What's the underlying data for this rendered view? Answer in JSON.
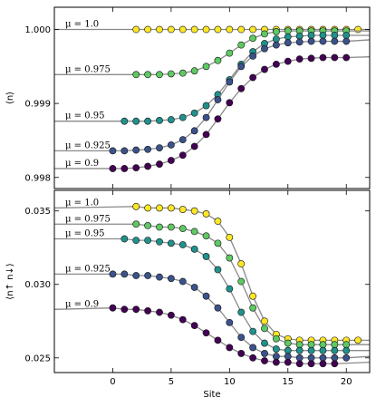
{
  "chart_data": [
    {
      "type": "line",
      "panel": "top",
      "ylabel": "⟨n⟩",
      "xlim": [
        -5,
        22
      ],
      "ylim": [
        0.99785,
        1.0003
      ],
      "yticks": [
        0.998,
        0.999,
        1.0
      ],
      "ytick_labels": [
        "0.998",
        "0.999",
        "1.000"
      ],
      "xticks": [
        0,
        5,
        10,
        15,
        20
      ],
      "grid": false,
      "series": [
        {
          "name": "μ = 1.0",
          "color": "#fde725",
          "x": [
            2,
            3,
            4,
            5,
            6,
            7,
            8,
            9,
            10,
            11,
            12,
            13,
            14,
            15,
            16,
            17,
            18,
            19,
            20,
            21
          ],
          "values": [
            1.0,
            1.0,
            1.0,
            1.0,
            1.0,
            1.0,
            1.0,
            1.0,
            1.0,
            1.0,
            1.0,
            1.0,
            1.0,
            1.0,
            1.0,
            1.0,
            1.0,
            1.0,
            1.0,
            1.0
          ],
          "line_left": 1.0,
          "line_right": 1.0
        },
        {
          "name": "μ = 0.975",
          "color": "#5ec962",
          "x": [
            2,
            3,
            4,
            5,
            6,
            7,
            8,
            9,
            10,
            11,
            12,
            13,
            14,
            15,
            16,
            17,
            18,
            19,
            20
          ],
          "values": [
            0.99939,
            0.99939,
            0.99939,
            0.9994,
            0.99941,
            0.99944,
            0.9995,
            0.99958,
            0.99968,
            0.99979,
            0.99988,
            0.99994,
            0.99997,
            0.99998,
            0.99998,
            0.99998,
            0.99998,
            0.99998,
            0.99998
          ],
          "line_left": 0.99939,
          "line_right": 0.99998
        },
        {
          "name": "μ = 0.95",
          "color": "#21918c",
          "x": [
            1,
            2,
            3,
            4,
            5,
            6,
            7,
            8,
            9,
            10,
            11,
            12,
            13,
            14,
            15,
            16,
            17,
            18,
            19,
            20
          ],
          "values": [
            0.99876,
            0.99876,
            0.99876,
            0.99877,
            0.99878,
            0.99881,
            0.99887,
            0.99897,
            0.99912,
            0.99932,
            0.99953,
            0.9997,
            0.99981,
            0.99987,
            0.9999,
            0.99991,
            0.99992,
            0.99992,
            0.99992,
            0.99992
          ],
          "line_left": 0.99876,
          "line_right": 0.99992
        },
        {
          "name": "μ = 0.925",
          "color": "#3b528b",
          "x": [
            0,
            1,
            2,
            3,
            4,
            5,
            6,
            7,
            8,
            9,
            10,
            11,
            12,
            13,
            14,
            15,
            16,
            17,
            18,
            19,
            20
          ],
          "values": [
            0.99836,
            0.99836,
            0.99837,
            0.99838,
            0.9984,
            0.99844,
            0.99851,
            0.99863,
            0.99881,
            0.99905,
            0.99929,
            0.9995,
            0.99964,
            0.99974,
            0.99979,
            0.99982,
            0.99983,
            0.99984,
            0.99984,
            0.99984,
            0.99984
          ],
          "line_left": 0.99836,
          "line_right": 0.99986
        },
        {
          "name": "μ = 0.9",
          "color": "#440154",
          "x": [
            0,
            1,
            2,
            3,
            4,
            5,
            6,
            7,
            8,
            9,
            10,
            11,
            12,
            13,
            14,
            15,
            16,
            17,
            18,
            19,
            20
          ],
          "values": [
            0.99812,
            0.99812,
            0.99813,
            0.99815,
            0.99818,
            0.99823,
            0.9983,
            0.99842,
            0.99858,
            0.99879,
            0.99901,
            0.9992,
            0.99935,
            0.99946,
            0.99953,
            0.99957,
            0.9996,
            0.99961,
            0.99962,
            0.99962,
            0.99962
          ],
          "line_left": 0.99812,
          "line_right": 0.99963
        }
      ]
    },
    {
      "type": "line",
      "panel": "bottom",
      "xlabel": "Site",
      "ylabel": "⟨n↑ n↓⟩",
      "xlim": [
        -5,
        22
      ],
      "ylim": [
        0.024,
        0.0364
      ],
      "yticks": [
        0.025,
        0.03,
        0.035
      ],
      "ytick_labels": [
        "0.025",
        "0.030",
        "0.035"
      ],
      "xticks": [
        0,
        5,
        10,
        15,
        20
      ],
      "xtick_labels": [
        "0",
        "5",
        "10",
        "15",
        "20"
      ],
      "grid": false,
      "series": [
        {
          "name": "μ = 1.0",
          "color": "#fde725",
          "x": [
            2,
            3,
            4,
            5,
            6,
            7,
            8,
            9,
            10,
            11,
            12,
            13,
            14,
            15,
            16,
            17,
            18,
            19,
            20,
            21
          ],
          "values": [
            0.0353,
            0.0352,
            0.0352,
            0.0352,
            0.0351,
            0.035,
            0.0348,
            0.0343,
            0.0332,
            0.0314,
            0.0292,
            0.0275,
            0.0266,
            0.0263,
            0.0262,
            0.0262,
            0.0262,
            0.0262,
            0.0262,
            0.0262
          ],
          "line_left": 0.0352,
          "line_right": 0.0262
        },
        {
          "name": "μ = 0.975",
          "color": "#5ec962",
          "x": [
            2,
            3,
            4,
            5,
            6,
            7,
            8,
            9,
            10,
            11,
            12,
            13,
            14,
            15,
            16,
            17,
            18,
            19,
            20
          ],
          "values": [
            0.0341,
            0.034,
            0.0339,
            0.0339,
            0.0338,
            0.0336,
            0.0333,
            0.0328,
            0.0318,
            0.0302,
            0.0284,
            0.027,
            0.0263,
            0.026,
            0.0259,
            0.0259,
            0.0259,
            0.0259,
            0.0259
          ],
          "line_left": 0.0341,
          "line_right": 0.0259
        },
        {
          "name": "μ = 0.95",
          "color": "#21918c",
          "x": [
            1,
            2,
            3,
            4,
            5,
            6,
            7,
            8,
            9,
            10,
            11,
            12,
            13,
            14,
            15,
            16,
            17,
            18,
            19,
            20
          ],
          "values": [
            0.0331,
            0.033,
            0.033,
            0.0329,
            0.0328,
            0.0327,
            0.0324,
            0.0319,
            0.031,
            0.0297,
            0.0281,
            0.0268,
            0.026,
            0.0256,
            0.0255,
            0.0255,
            0.0255,
            0.0255,
            0.0255,
            0.0255
          ],
          "line_left": 0.0331,
          "line_right": 0.0255
        },
        {
          "name": "μ = 0.925",
          "color": "#3b528b",
          "x": [
            0,
            1,
            2,
            3,
            4,
            5,
            6,
            7,
            8,
            9,
            10,
            11,
            12,
            13,
            14,
            15,
            16,
            17,
            18,
            19,
            20
          ],
          "values": [
            0.0307,
            0.0307,
            0.0306,
            0.0306,
            0.0305,
            0.0304,
            0.0302,
            0.0298,
            0.0292,
            0.0284,
            0.0274,
            0.0264,
            0.0257,
            0.0253,
            0.0251,
            0.0251,
            0.025,
            0.025,
            0.025,
            0.025,
            0.025
          ],
          "line_left": 0.0307,
          "line_right": 0.0251
        },
        {
          "name": "μ = 0.9",
          "color": "#440154",
          "x": [
            0,
            1,
            2,
            3,
            4,
            5,
            6,
            7,
            8,
            9,
            10,
            11,
            12,
            13,
            14,
            15,
            16,
            17,
            18,
            19
          ],
          "values": [
            0.0284,
            0.0283,
            0.0283,
            0.0282,
            0.0281,
            0.0279,
            0.0276,
            0.0272,
            0.0267,
            0.0262,
            0.0257,
            0.0253,
            0.025,
            0.0248,
            0.0247,
            0.0247,
            0.0246,
            0.0246,
            0.0246,
            0.0246
          ],
          "line_left": 0.0283,
          "line_right": 0.0247
        }
      ]
    }
  ]
}
